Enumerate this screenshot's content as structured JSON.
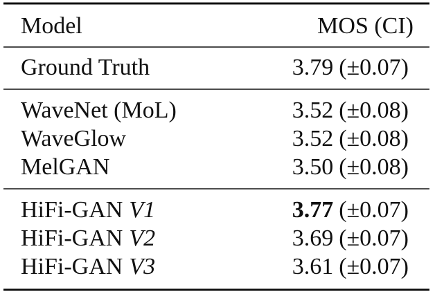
{
  "header": {
    "model": "Model",
    "mos": "MOS (CI)"
  },
  "groups": [
    [
      {
        "name": "Ground Truth",
        "score": "3.79",
        "ci": "(±0.07)"
      }
    ],
    [
      {
        "name": "WaveNet (MoL)",
        "score": "3.52",
        "ci": "(±0.08)"
      },
      {
        "name": "WaveGlow",
        "score": "3.52",
        "ci": "(±0.08)"
      },
      {
        "name": "MelGAN",
        "score": "3.50",
        "ci": "(±0.08)"
      }
    ],
    [
      {
        "name": "HiFi-GAN",
        "version": "V1",
        "score": "3.77",
        "ci": "(±0.07)",
        "bold": true
      },
      {
        "name": "HiFi-GAN",
        "version": "V2",
        "score": "3.69",
        "ci": "(±0.07)"
      },
      {
        "name": "HiFi-GAN",
        "version": "V3",
        "score": "3.61",
        "ci": "(±0.07)"
      }
    ]
  ]
}
